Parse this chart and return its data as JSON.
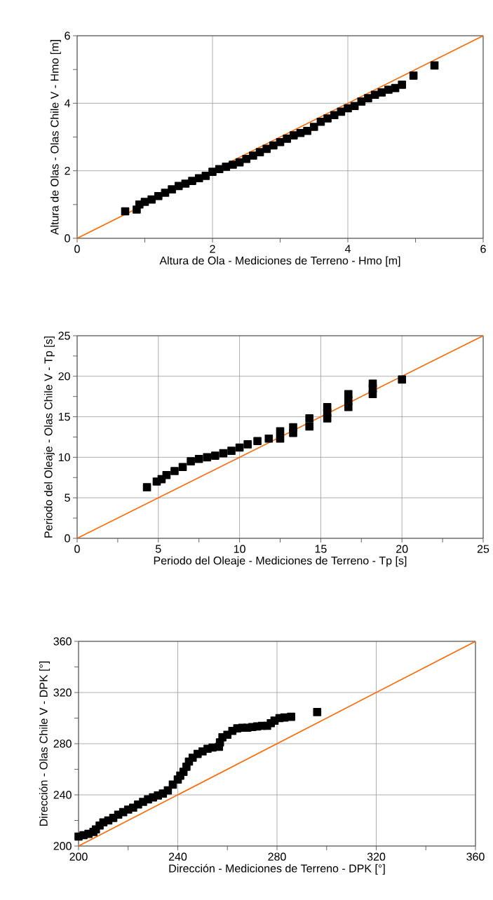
{
  "chart_data": [
    {
      "type": "scatter",
      "xlabel": "Altura de Ola - Mediciones de Terreno - Hmo [m]",
      "ylabel": "Altura de Olas - Olas Chile V - Hmo [m]",
      "xlim": [
        0,
        6
      ],
      "ylim": [
        0,
        6
      ],
      "xticks": [
        0,
        {
          "value": 1,
          "label": null
        },
        2,
        {
          "value": 3,
          "label": null
        },
        4,
        {
          "value": 5,
          "label": null
        },
        6
      ],
      "yticks": [
        0,
        {
          "value": 1,
          "label": null
        },
        2,
        {
          "value": 3,
          "label": null
        },
        4,
        {
          "value": 5,
          "label": null
        },
        6
      ],
      "grid": true,
      "series": [
        {
          "type": "scatter",
          "marker": "square",
          "color": "#000000",
          "x": [
            0.71,
            0.88,
            0.92,
            1.0,
            1.1,
            1.2,
            1.3,
            1.4,
            1.5,
            1.6,
            1.7,
            1.8,
            1.9,
            2.0,
            2.1,
            2.2,
            2.3,
            2.4,
            2.5,
            2.6,
            2.7,
            2.8,
            2.9,
            3.0,
            3.1,
            3.2,
            3.3,
            3.4,
            3.5,
            3.6,
            3.7,
            3.8,
            3.9,
            4.0,
            4.1,
            4.2,
            4.3,
            4.4,
            4.5,
            4.6,
            4.7,
            4.8,
            4.97,
            5.28
          ],
          "values": [
            0.8,
            0.85,
            1.0,
            1.08,
            1.15,
            1.25,
            1.35,
            1.45,
            1.55,
            1.62,
            1.7,
            1.78,
            1.85,
            1.97,
            2.05,
            2.12,
            2.18,
            2.25,
            2.35,
            2.45,
            2.55,
            2.65,
            2.75,
            2.85,
            2.95,
            3.05,
            3.12,
            3.18,
            3.3,
            3.45,
            3.55,
            3.65,
            3.75,
            3.85,
            3.92,
            4.05,
            4.15,
            4.25,
            4.32,
            4.4,
            4.45,
            4.55,
            4.82,
            5.12
          ]
        },
        {
          "type": "line",
          "marker": "none",
          "color": "#ff6600",
          "x": [
            0,
            6
          ],
          "values": [
            0,
            6
          ]
        }
      ]
    },
    {
      "type": "scatter",
      "xlabel": "Periodo del Oleaje - Mediciones de Terreno - Tp [s]",
      "ylabel": "Periodo del Oleaje  - Olas Chile V - Tp [s]",
      "xlim": [
        0,
        25
      ],
      "ylim": [
        0,
        25
      ],
      "xticks": [
        0,
        {
          "value": 2.5,
          "label": null
        },
        5,
        {
          "value": 7.5,
          "label": null
        },
        10,
        {
          "value": 12.5,
          "label": null
        },
        15,
        {
          "value": 17.5,
          "label": null
        },
        20,
        {
          "value": 22.5,
          "label": null
        },
        25
      ],
      "yticks": [
        0,
        {
          "value": 2.5,
          "label": null
        },
        5,
        {
          "value": 7.5,
          "label": null
        },
        10,
        {
          "value": 12.5,
          "label": null
        },
        15,
        {
          "value": 17.5,
          "label": null
        },
        20,
        {
          "value": 22.5,
          "label": null
        },
        25
      ],
      "grid": true,
      "series": [
        {
          "type": "scatter",
          "marker": "square",
          "color": "#000000",
          "x": [
            4.3,
            4.9,
            5.2,
            5.5,
            6.0,
            6.5,
            7.0,
            7.5,
            8.0,
            8.5,
            9.0,
            9.5,
            10.0,
            10.5,
            11.1,
            11.8,
            12.5,
            12.5,
            13.3,
            13.3,
            14.3,
            14.3,
            15.4,
            15.4,
            15.4,
            16.7,
            16.7,
            16.7,
            18.2,
            18.2,
            18.2,
            20.0
          ],
          "values": [
            6.3,
            7.0,
            7.3,
            7.8,
            8.3,
            8.8,
            9.5,
            9.8,
            10.0,
            10.2,
            10.5,
            10.8,
            11.2,
            11.6,
            12.0,
            12.3,
            12.3,
            13.2,
            13.0,
            13.7,
            13.8,
            14.8,
            14.8,
            15.5,
            16.2,
            16.2,
            17.0,
            17.8,
            17.8,
            18.5,
            19.1,
            19.6
          ]
        },
        {
          "type": "line",
          "marker": "none",
          "color": "#ff6600",
          "x": [
            0,
            25
          ],
          "values": [
            0,
            25
          ]
        }
      ]
    },
    {
      "type": "scatter",
      "xlabel": "Dirección  - Mediciones de Terreno - DPK [°]",
      "ylabel": "Dirección  - Olas Chile V - DPK [°]",
      "xlim": [
        200,
        360
      ],
      "ylim": [
        200,
        360
      ],
      "xticks": [
        200,
        {
          "value": 220,
          "label": null
        },
        240,
        {
          "value": 260,
          "label": null
        },
        280,
        {
          "value": 300,
          "label": null
        },
        320,
        {
          "value": 340,
          "label": null
        },
        360
      ],
      "yticks": [
        200,
        {
          "value": 220,
          "label": null
        },
        240,
        {
          "value": 260,
          "label": null
        },
        280,
        {
          "value": 300,
          "label": null
        },
        320,
        {
          "value": 340,
          "label": null
        },
        360
      ],
      "grid": true,
      "series": [
        {
          "type": "scatter",
          "marker": "square",
          "color": "#000000",
          "x": [
            200,
            202,
            204,
            206,
            207,
            208.5,
            210,
            212,
            214,
            216,
            218,
            220,
            222,
            224,
            226,
            228,
            230,
            232,
            234,
            236,
            238,
            240,
            241,
            242.3,
            243.5,
            244.5,
            246,
            248,
            250,
            252,
            254,
            256.6,
            257,
            258,
            260,
            262,
            264,
            266,
            268,
            270,
            272,
            274,
            276,
            277.5,
            279,
            281,
            283,
            285.7,
            296.2
          ],
          "values": [
            207.4,
            208.5,
            209.5,
            211,
            213,
            216,
            218.5,
            220,
            222,
            224.5,
            226.5,
            228.5,
            230,
            232.5,
            234.5,
            236.5,
            238,
            239.5,
            241,
            243.5,
            248,
            252,
            255,
            258,
            262,
            266,
            269,
            272,
            274,
            276,
            277,
            277.5,
            281,
            285,
            287,
            290,
            292,
            292.5,
            292.5,
            293,
            293.5,
            294,
            294,
            296,
            298,
            300,
            300.5,
            301,
            304.7
          ]
        },
        {
          "type": "line",
          "marker": "none",
          "color": "#ff6600",
          "x": [
            200,
            360
          ],
          "values": [
            200,
            360
          ]
        }
      ]
    }
  ]
}
